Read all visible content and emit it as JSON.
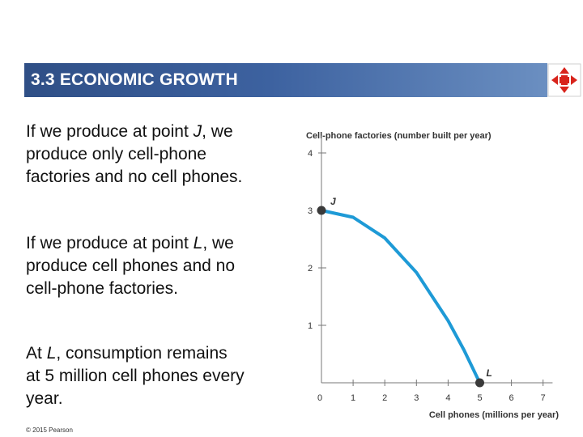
{
  "header": {
    "title": "3.3  ECONOMIC GROWTH",
    "nav_icon": "four-way-arrows-icon",
    "colors": {
      "bar_dark": "#2f4f86",
      "bar_light": "#6f93c4",
      "icon_red": "#d8241c"
    }
  },
  "body": {
    "p1": {
      "pre": "If we produce at point ",
      "point": "J",
      "post": ", we produce only cell-phone factories and no cell phones."
    },
    "p2": {
      "pre": "If we produce at point ",
      "point": "L",
      "post": ", we produce cell phones and no cell-phone factories."
    },
    "p3": {
      "pre": "At ",
      "point": "L",
      "post": ", consumption remains at 5 million cell phones every year."
    }
  },
  "footer": {
    "copyright": "© 2015 Pearson"
  },
  "chart_data": {
    "type": "line",
    "ylabel": "Cell-phone factories (number built per year)",
    "xlabel": "Cell phones (millions per year)",
    "xlim": [
      0,
      7.3
    ],
    "ylim": [
      0,
      4.3
    ],
    "x_ticks": [
      "0",
      "1",
      "2",
      "3",
      "4",
      "5",
      "6",
      "7"
    ],
    "y_ticks": [
      "1",
      "2",
      "3",
      "4"
    ],
    "series": [
      {
        "color": "#1e9ad6",
        "x": [
          0,
          1,
          2,
          3,
          4,
          4.5,
          5
        ],
        "y": [
          3,
          2.88,
          2.52,
          1.92,
          1.08,
          0.57,
          0
        ]
      }
    ],
    "points": [
      {
        "label": "J",
        "x": 0,
        "y": 3
      },
      {
        "label": "L",
        "x": 5,
        "y": 0
      }
    ],
    "grid": false
  }
}
